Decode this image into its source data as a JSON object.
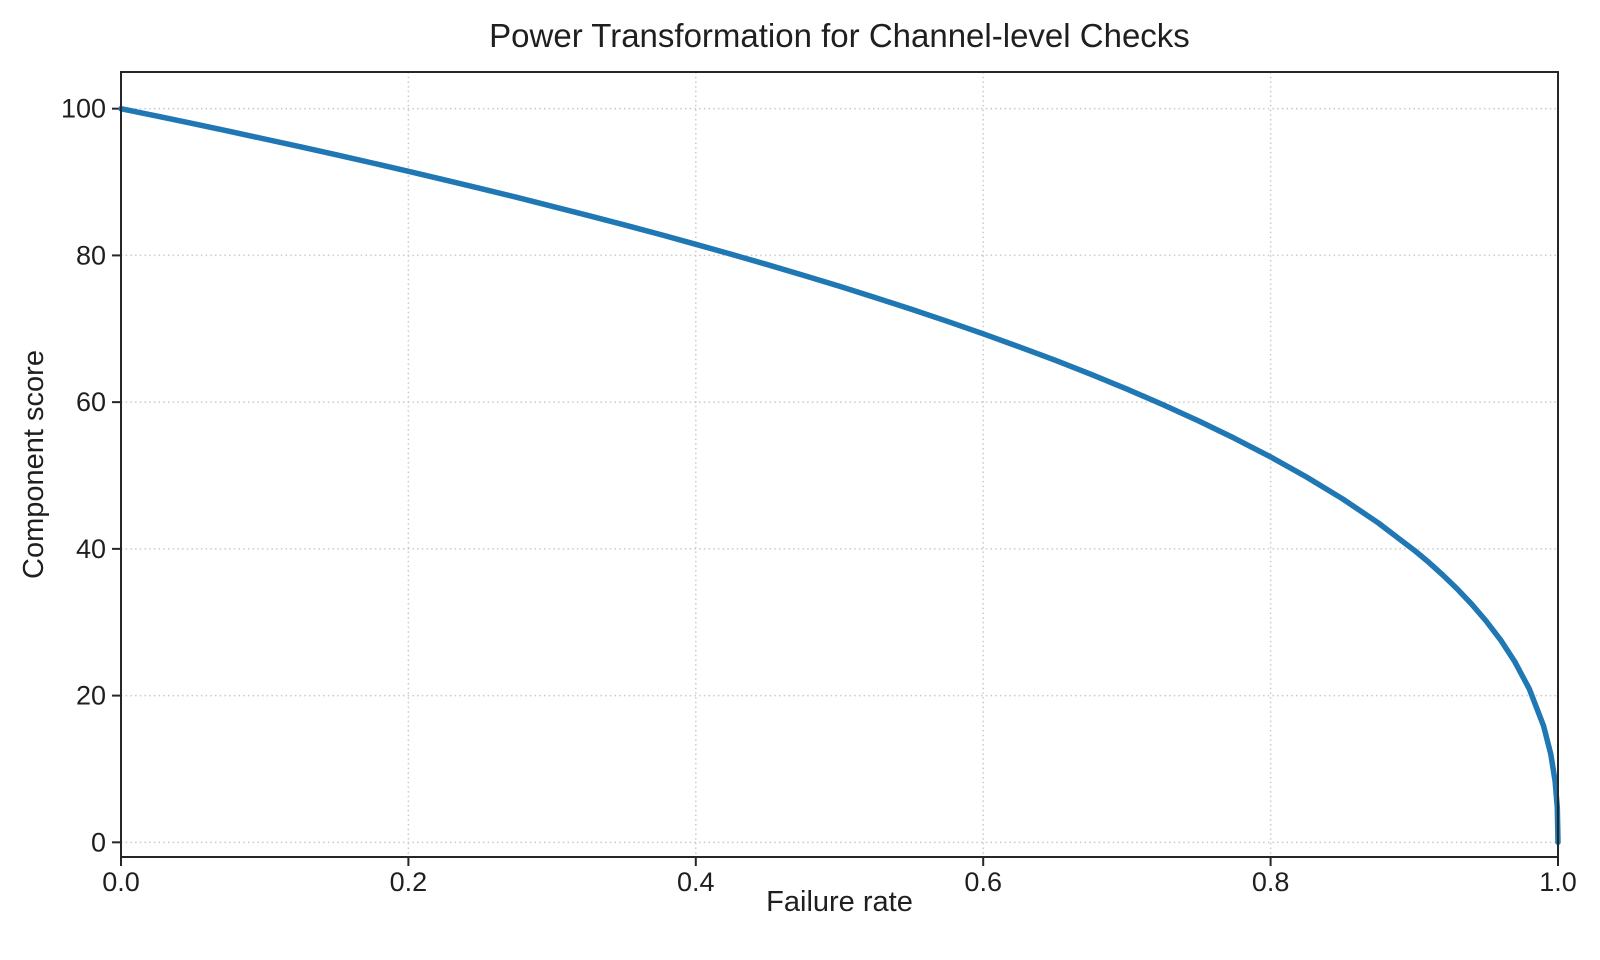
{
  "page": {
    "background": "#ffffff"
  },
  "chart_data": {
    "type": "line",
    "title": "Power Transformation for Channel-level Checks",
    "xlabel": "Failure rate",
    "ylabel": "Component score",
    "xlim": [
      0.0,
      1.0
    ],
    "ylim": [
      -2,
      105
    ],
    "xticks": [
      0.0,
      0.2,
      0.4,
      0.6,
      0.8,
      1.0
    ],
    "xtick_labels": [
      "0.0",
      "0.2",
      "0.4",
      "0.6",
      "0.8",
      "1.0"
    ],
    "yticks": [
      0,
      20,
      40,
      60,
      80,
      100
    ],
    "ytick_labels": [
      "0",
      "20",
      "40",
      "60",
      "80",
      "100"
    ],
    "grid": true,
    "grid_style": "dotted",
    "legend": "none",
    "inferred_formula": "score = 100 * (1 - failure_rate)^0.4",
    "series": [
      {
        "name": "component-score-curve",
        "color": "#1f77b4",
        "x": [
          0,
          0.025,
          0.05,
          0.075,
          0.1,
          0.125,
          0.15,
          0.175,
          0.2,
          0.225,
          0.25,
          0.275,
          0.3,
          0.325,
          0.35,
          0.375,
          0.4,
          0.425,
          0.45,
          0.475,
          0.5,
          0.525,
          0.55,
          0.575,
          0.6,
          0.625,
          0.65,
          0.675,
          0.7,
          0.725,
          0.75,
          0.775,
          0.8,
          0.825,
          0.85,
          0.875,
          0.9,
          0.91,
          0.92,
          0.93,
          0.94,
          0.95,
          0.96,
          0.97,
          0.98,
          0.99,
          0.995,
          0.998,
          0.9995,
          1.0
        ],
        "y": [
          100,
          98.99,
          97.97,
          96.93,
          95.87,
          94.8,
          93.71,
          92.59,
          91.46,
          90.31,
          89.13,
          87.93,
          86.7,
          85.45,
          84.17,
          82.86,
          81.52,
          80.14,
          78.73,
          77.28,
          75.79,
          74.25,
          72.66,
          71.02,
          69.31,
          67.55,
          65.71,
          63.79,
          61.78,
          59.67,
          57.43,
          55.06,
          52.53,
          49.8,
          46.82,
          43.53,
          39.81,
          38.17,
          36.41,
          34.52,
          32.45,
          30.17,
          27.6,
          24.6,
          20.91,
          15.85,
          12.01,
          8.33,
          4.78,
          0
        ]
      }
    ]
  },
  "style": {
    "line_color": "#1f77b4",
    "line_width": 5.5,
    "grid_color": "#c9c9c9",
    "spine_color": "#262626",
    "tick_color": "#262626",
    "text_color": "#1f1f1f",
    "tick_font_size": 27
  }
}
